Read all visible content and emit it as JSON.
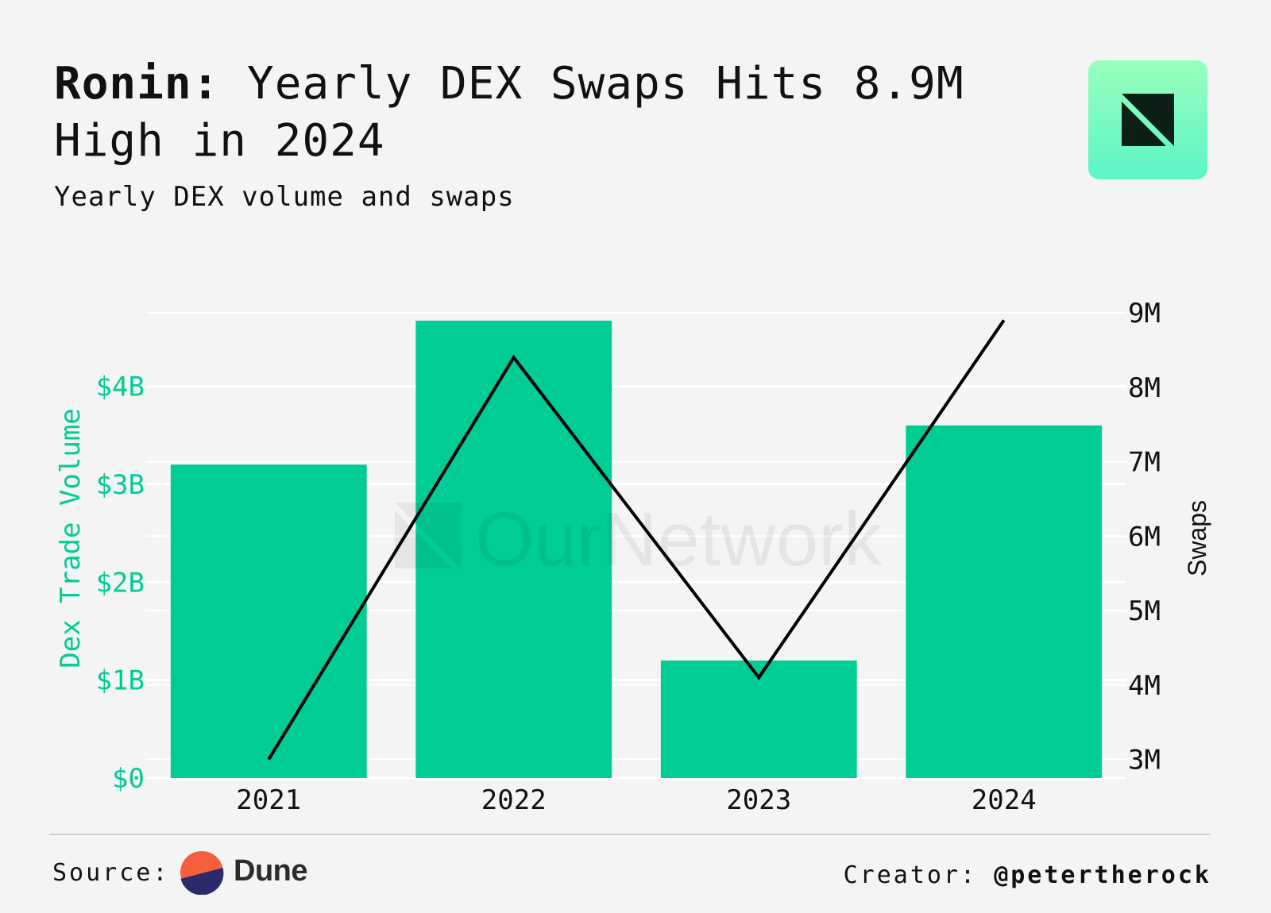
{
  "header": {
    "title_bold": "Ronin:",
    "title_rest": "Yearly DEX Swaps Hits 8.9M High in 2024",
    "subtitle": "Yearly DEX volume and swaps"
  },
  "watermark": "OurNetwork",
  "footer": {
    "source_label": "Source:",
    "source_name": "Dune",
    "creator_label": "Creator:",
    "creator_handle": "@petertherock"
  },
  "colors": {
    "bar": "#00cc96",
    "line": "#000000",
    "left_axis": "#00cc96",
    "grid": "#ffffff"
  },
  "chart_data": {
    "type": "bar",
    "categories": [
      "2021",
      "2022",
      "2023",
      "2024"
    ],
    "series": [
      {
        "name": "Dex Trade Volume",
        "type": "bar",
        "axis": "left",
        "values": [
          3.2,
          4.67,
          1.2,
          3.6
        ]
      },
      {
        "name": "Swaps",
        "type": "line",
        "axis": "right",
        "values": [
          3.0,
          8.4,
          4.1,
          8.9
        ]
      }
    ],
    "left_axis": {
      "label": "Dex Trade Volume",
      "unit": "billions USD",
      "range": [
        0,
        4.75
      ],
      "ticks": [
        0,
        1,
        2,
        3,
        4
      ],
      "tick_labels": [
        "$0",
        "$1B",
        "$2B",
        "$3B",
        "$4B"
      ]
    },
    "right_axis": {
      "label": "Swaps",
      "unit": "millions",
      "range": [
        2.75,
        9.0
      ],
      "ticks": [
        3,
        4,
        5,
        6,
        7,
        8,
        9
      ],
      "tick_labels": [
        "3M",
        "4M",
        "5M",
        "6M",
        "7M",
        "8M",
        "9M"
      ]
    },
    "grid": true
  }
}
